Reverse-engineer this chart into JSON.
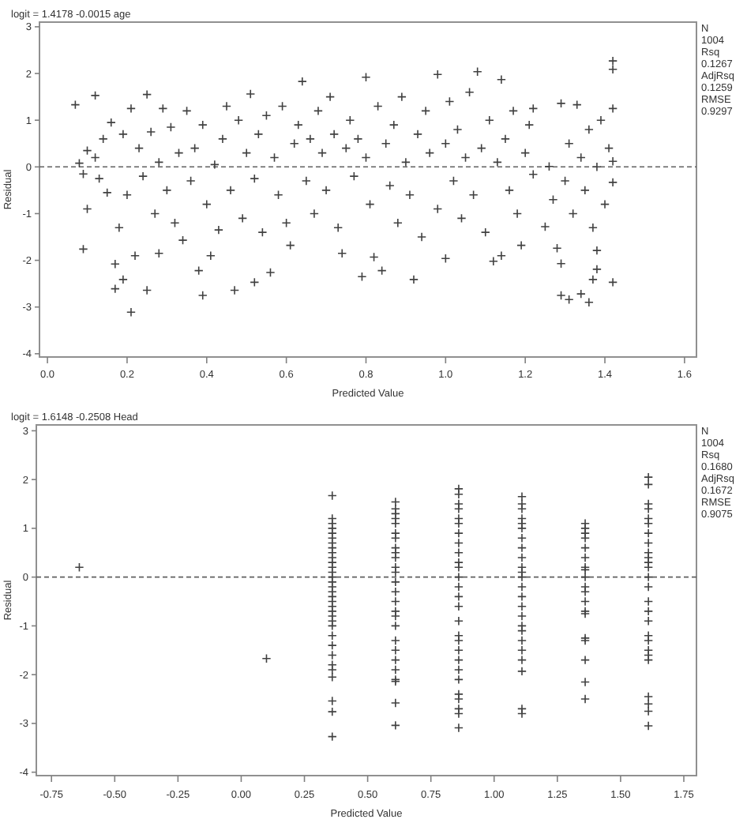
{
  "chart_data": [
    {
      "type": "scatter",
      "title": "logit = 1.4178 -0.0015 age",
      "xlabel": "Predicted Value",
      "ylabel": "Residual",
      "color": "#404040",
      "marker": "cross",
      "xlim": [
        -0.02,
        1.63
      ],
      "ylim": [
        -4.07,
        3.1
      ],
      "xticks": [
        {
          "value": 0,
          "label": "0.0"
        },
        0.2,
        0.4,
        0.6,
        0.8,
        {
          "value": 1,
          "label": "1.0"
        },
        1.2,
        1.4,
        1.6
      ],
      "yticks": [
        -4,
        -3,
        -2,
        -1,
        0,
        1,
        2,
        3
      ],
      "ref_lines": [
        {
          "axis": "y",
          "value": 0,
          "line_style": "dashed",
          "color": "#606060"
        }
      ],
      "annotations": [
        "N",
        "1004",
        "Rsq",
        "0.1267",
        "AdjRsq",
        "0.1259",
        "RMSE",
        "0.9297"
      ],
      "x": [
        0.07,
        0.08,
        0.09,
        0.09,
        0.1,
        0.1,
        0.12,
        0.12,
        0.13,
        0.14,
        0.15,
        0.16,
        0.17,
        0.17,
        0.18,
        0.19,
        0.19,
        0.2,
        0.21,
        0.21,
        0.22,
        0.23,
        0.24,
        0.25,
        0.25,
        0.26,
        0.27,
        0.28,
        0.28,
        0.29,
        0.3,
        0.31,
        0.32,
        0.33,
        0.34,
        0.35,
        0.36,
        0.37,
        0.38,
        0.39,
        0.39,
        0.4,
        0.41,
        0.42,
        0.43,
        0.44,
        0.45,
        0.46,
        0.47,
        0.48,
        0.49,
        0.5,
        0.51,
        0.52,
        0.52,
        0.53,
        0.54,
        0.55,
        0.56,
        0.57,
        0.58,
        0.59,
        0.6,
        0.61,
        0.62,
        0.63,
        0.64,
        0.65,
        0.66,
        0.67,
        0.68,
        0.69,
        0.7,
        0.71,
        0.72,
        0.73,
        0.74,
        0.75,
        0.76,
        0.77,
        0.78,
        0.79,
        0.8,
        0.8,
        0.81,
        0.82,
        0.83,
        0.84,
        0.85,
        0.86,
        0.87,
        0.88,
        0.89,
        0.9,
        0.91,
        0.92,
        0.93,
        0.94,
        0.95,
        0.96,
        0.98,
        0.98,
        1.0,
        1.0,
        1.01,
        1.02,
        1.03,
        1.04,
        1.05,
        1.06,
        1.07,
        1.08,
        1.09,
        1.1,
        1.11,
        1.12,
        1.13,
        1.14,
        1.14,
        1.15,
        1.16,
        1.17,
        1.18,
        1.19,
        1.2,
        1.21,
        1.22,
        1.22,
        1.25,
        1.26,
        1.27,
        1.28,
        1.29,
        1.29,
        1.29,
        1.3,
        1.31,
        1.31,
        1.32,
        1.33,
        1.34,
        1.34,
        1.35,
        1.36,
        1.36,
        1.37,
        1.37,
        1.38,
        1.38,
        1.38,
        1.39,
        1.4,
        1.41,
        1.42,
        1.42,
        1.42,
        1.42,
        1.42,
        1.42
      ],
      "values": [
        1.33,
        0.08,
        -0.15,
        -1.76,
        0.35,
        -0.9,
        1.53,
        0.2,
        -0.25,
        0.6,
        -0.55,
        0.95,
        -2.08,
        -2.61,
        -1.3,
        0.7,
        -2.41,
        -0.6,
        -3.11,
        1.25,
        -1.9,
        0.4,
        -0.2,
        1.55,
        -2.64,
        0.75,
        -1.0,
        -1.85,
        0.1,
        1.25,
        -0.5,
        0.85,
        -1.2,
        0.3,
        -1.57,
        1.2,
        -0.3,
        0.4,
        -2.22,
        -2.75,
        0.9,
        -0.8,
        -1.9,
        0.05,
        -1.35,
        0.6,
        1.3,
        -0.5,
        -2.64,
        1.0,
        -1.1,
        0.3,
        1.56,
        -2.47,
        -0.25,
        0.7,
        -1.4,
        1.1,
        -2.26,
        0.2,
        -0.6,
        1.3,
        -1.2,
        -1.68,
        0.5,
        0.9,
        1.83,
        -0.3,
        0.6,
        -1.0,
        1.2,
        0.3,
        -0.5,
        1.5,
        0.7,
        -1.3,
        -1.85,
        0.4,
        1.0,
        -0.2,
        0.6,
        -2.35,
        1.92,
        0.2,
        -0.8,
        -1.93,
        1.3,
        -2.22,
        0.5,
        -0.4,
        0.9,
        -1.2,
        1.5,
        0.1,
        -0.6,
        -2.41,
        0.7,
        -1.5,
        1.2,
        0.3,
        1.98,
        -0.9,
        -1.96,
        0.5,
        1.4,
        -0.3,
        0.8,
        -1.1,
        0.2,
        1.6,
        -0.6,
        2.04,
        0.4,
        -1.4,
        1.0,
        -2.02,
        0.1,
        1.87,
        -1.9,
        0.6,
        -0.5,
        1.2,
        -1.0,
        -1.68,
        0.3,
        0.9,
        1.25,
        -0.16,
        -1.28,
        0.01,
        -0.7,
        -1.74,
        -2.75,
        1.36,
        -2.07,
        -0.3,
        -2.84,
        0.5,
        -1.0,
        1.33,
        -2.72,
        0.2,
        -0.5,
        -2.9,
        0.8,
        -2.41,
        -1.3,
        -2.19,
        -1.79,
        0.0,
        1.0,
        -0.8,
        0.4,
        2.09,
        2.27,
        1.25,
        0.12,
        -0.33,
        -2.47
      ]
    },
    {
      "type": "scatter",
      "title": "logit = 1.6148 -0.2508 Head",
      "xlabel": "Predicted Value",
      "ylabel": "Residual",
      "color": "#404040",
      "marker": "cross",
      "xlim": [
        -0.81,
        1.8
      ],
      "ylim": [
        -4.07,
        3.12
      ],
      "xticks": [
        -0.75,
        {
          "value": -0.5,
          "label": "-0.50"
        },
        -0.25,
        {
          "value": 0,
          "label": "0.00"
        },
        0.25,
        {
          "value": 0.5,
          "label": "0.50"
        },
        0.75,
        {
          "value": 1,
          "label": "1.00"
        },
        1.25,
        {
          "value": 1.5,
          "label": "1.50"
        },
        1.75
      ],
      "yticks": [
        -4,
        -3,
        -2,
        -1,
        0,
        1,
        2,
        3
      ],
      "ref_lines": [
        {
          "axis": "y",
          "value": 0,
          "line_style": "dashed",
          "color": "#606060"
        }
      ],
      "annotations": [
        "N",
        "1004",
        "Rsq",
        "0.1680",
        "AdjRsq",
        "0.1672",
        "RMSE",
        "0.9075"
      ],
      "x": [
        -0.64,
        0.1,
        0.36,
        0.36,
        0.36,
        0.36,
        0.36,
        0.36,
        0.36,
        0.36,
        0.36,
        0.36,
        0.36,
        0.36,
        0.36,
        0.36,
        0.36,
        0.36,
        0.36,
        0.36,
        0.36,
        0.36,
        0.36,
        0.36,
        0.36,
        0.36,
        0.36,
        0.36,
        0.36,
        0.36,
        0.36,
        0.36,
        0.36,
        0.36,
        0.36,
        0.61,
        0.61,
        0.61,
        0.61,
        0.61,
        0.61,
        0.61,
        0.61,
        0.61,
        0.61,
        0.61,
        0.61,
        0.61,
        0.61,
        0.61,
        0.61,
        0.61,
        0.61,
        0.61,
        0.61,
        0.61,
        0.61,
        0.61,
        0.61,
        0.61,
        0.61,
        0.86,
        0.86,
        0.86,
        0.86,
        0.86,
        0.86,
        0.86,
        0.86,
        0.86,
        0.86,
        0.86,
        0.86,
        0.86,
        0.86,
        0.86,
        0.86,
        0.86,
        0.86,
        0.86,
        0.86,
        0.86,
        0.86,
        0.86,
        0.86,
        0.86,
        0.86,
        0.86,
        1.11,
        1.11,
        1.11,
        1.11,
        1.11,
        1.11,
        1.11,
        1.11,
        1.11,
        1.11,
        1.11,
        1.11,
        1.11,
        1.11,
        1.11,
        1.11,
        1.11,
        1.11,
        1.11,
        1.11,
        1.11,
        1.11,
        1.11,
        1.11,
        1.36,
        1.36,
        1.36,
        1.36,
        1.36,
        1.36,
        1.36,
        1.36,
        1.36,
        1.36,
        1.36,
        1.36,
        1.36,
        1.36,
        1.36,
        1.36,
        1.36,
        1.36,
        1.36,
        1.61,
        1.61,
        1.61,
        1.61,
        1.61,
        1.61,
        1.61,
        1.61,
        1.61,
        1.61,
        1.61,
        1.61,
        1.61,
        1.61,
        1.61,
        1.61,
        1.61,
        1.61,
        1.61,
        1.61,
        1.61,
        1.61,
        1.61,
        1.61,
        1.61,
        1.61
      ],
      "values": [
        0.2,
        -1.67,
        1.67,
        1.2,
        1.1,
        1.0,
        0.9,
        0.8,
        0.7,
        0.6,
        0.5,
        0.4,
        0.3,
        0.2,
        0.1,
        0.0,
        -0.1,
        -0.2,
        -0.3,
        -0.4,
        -0.5,
        -0.6,
        -0.7,
        -0.8,
        -0.9,
        -1.0,
        -1.2,
        -1.4,
        -1.6,
        -1.8,
        -1.9,
        -2.05,
        -2.54,
        -2.76,
        -3.27,
        1.54,
        1.4,
        1.3,
        1.2,
        1.1,
        0.9,
        0.8,
        0.6,
        0.5,
        0.4,
        0.2,
        0.1,
        -0.1,
        -0.3,
        -0.5,
        -0.7,
        -0.8,
        -1.0,
        -1.3,
        -1.5,
        -1.7,
        -1.9,
        -2.1,
        -2.14,
        -2.58,
        -3.04,
        1.81,
        1.7,
        1.5,
        1.4,
        1.2,
        1.1,
        0.9,
        0.7,
        0.5,
        0.3,
        0.2,
        0.0,
        -0.2,
        -0.4,
        -0.6,
        -0.9,
        -1.2,
        -1.3,
        -1.5,
        -1.7,
        -1.9,
        -2.1,
        -2.4,
        -2.5,
        -2.7,
        -2.8,
        -3.09,
        1.65,
        1.5,
        1.4,
        1.2,
        1.1,
        1.0,
        0.8,
        0.6,
        0.4,
        0.2,
        0.1,
        0.0,
        -0.2,
        -0.4,
        -0.6,
        -0.8,
        -1.0,
        -1.1,
        -1.3,
        -1.5,
        -1.7,
        -1.93,
        -2.7,
        -2.8,
        1.1,
        1.0,
        0.9,
        0.8,
        0.6,
        0.4,
        0.2,
        0.15,
        0.0,
        -0.2,
        -0.3,
        -0.5,
        -0.7,
        -0.75,
        -1.25,
        -1.3,
        -1.7,
        -2.15,
        -2.5,
        2.05,
        1.9,
        1.5,
        1.4,
        1.2,
        1.1,
        0.9,
        0.7,
        0.5,
        0.4,
        0.3,
        0.2,
        0.0,
        -0.2,
        -0.5,
        -0.7,
        -0.9,
        -1.2,
        -1.3,
        -1.5,
        -1.6,
        -1.7,
        -2.45,
        -2.6,
        -2.75,
        -3.05
      ]
    }
  ]
}
